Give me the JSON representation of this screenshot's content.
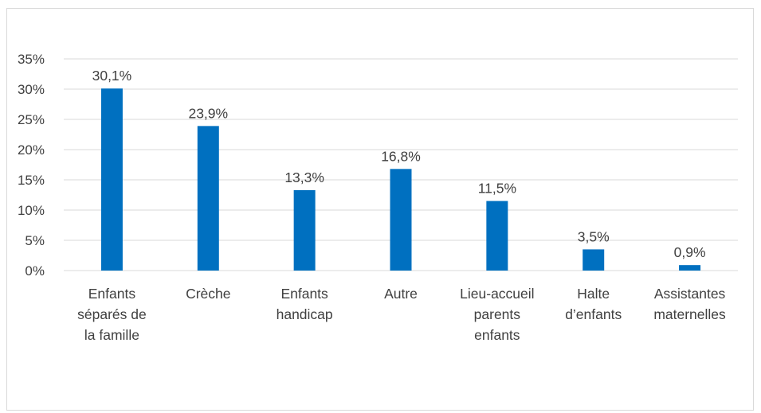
{
  "chart_data": {
    "type": "bar",
    "title": "",
    "xlabel": "",
    "ylabel": "",
    "ylim": [
      0,
      0.35
    ],
    "y_ticks": [
      "0%",
      "5%",
      "10%",
      "15%",
      "20%",
      "25%",
      "30%",
      "35%"
    ],
    "grid": true,
    "legend": "none",
    "bar_color": "#0070c0",
    "categories": [
      [
        "Enfants",
        "séparés de",
        "la famille"
      ],
      [
        "Crèche"
      ],
      [
        "Enfants",
        "handicap"
      ],
      [
        "Autre"
      ],
      [
        "Lieu-accueil",
        "parents",
        "enfants"
      ],
      [
        "Halte",
        "d’enfants"
      ],
      [
        "Assistantes",
        "maternelles"
      ]
    ],
    "values": [
      0.301,
      0.239,
      0.133,
      0.168,
      0.115,
      0.035,
      0.009
    ],
    "data_labels": [
      "30,1%",
      "23,9%",
      "13,3%",
      "16,8%",
      "11,5%",
      "3,5%",
      "0,9%"
    ]
  }
}
